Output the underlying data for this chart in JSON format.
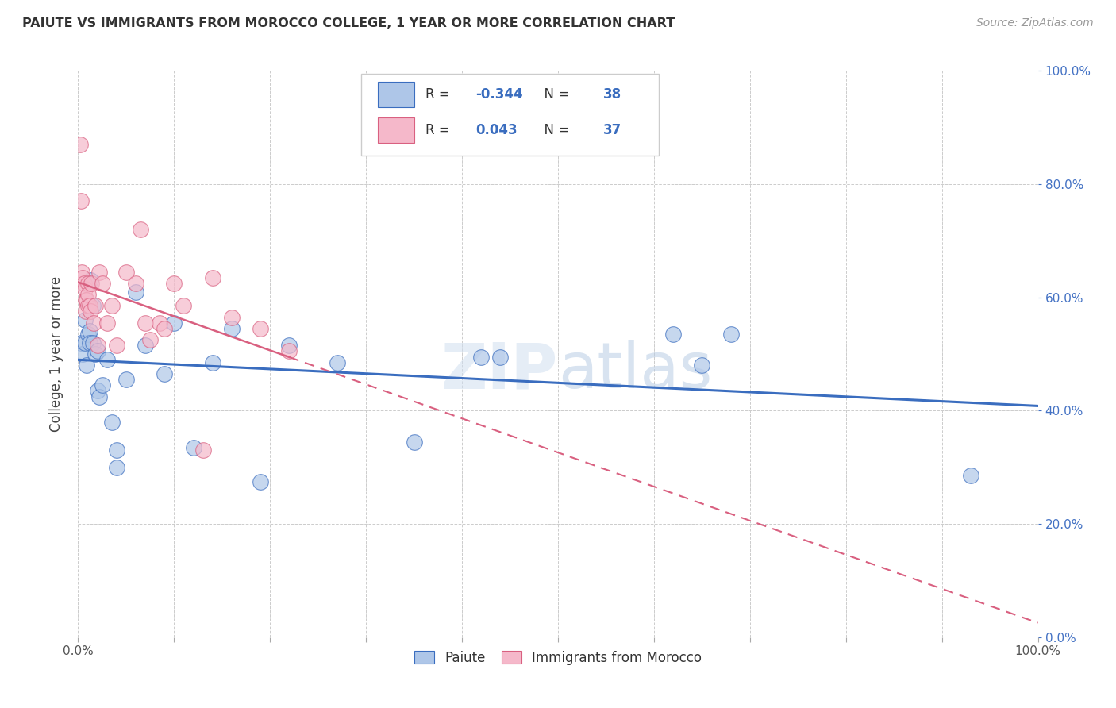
{
  "title": "PAIUTE VS IMMIGRANTS FROM MOROCCO COLLEGE, 1 YEAR OR MORE CORRELATION CHART",
  "source": "Source: ZipAtlas.com",
  "ylabel": "College, 1 year or more",
  "legend_label1": "Paiute",
  "legend_label2": "Immigrants from Morocco",
  "r1": -0.344,
  "n1": 38,
  "r2": 0.043,
  "n2": 37,
  "color_blue": "#aec6e8",
  "color_pink": "#f5b8ca",
  "line_blue": "#3a6dbf",
  "line_pink": "#d96080",
  "xlim": [
    0.0,
    1.0
  ],
  "ylim": [
    0.0,
    1.0
  ],
  "xtick_positions": [
    0.0,
    0.1,
    0.2,
    0.3,
    0.4,
    0.5,
    0.6,
    0.7,
    0.8,
    0.9,
    1.0
  ],
  "ytick_positions": [
    0.0,
    0.2,
    0.4,
    0.6,
    0.8,
    1.0
  ],
  "xtick_labels": [
    "0.0%",
    "",
    "",
    "",
    "",
    "",
    "",
    "",
    "",
    "",
    "100.0%"
  ],
  "ytick_labels_right": [
    "0.0%",
    "20.0%",
    "40.0%",
    "60.0%",
    "80.0%",
    "100.0%"
  ],
  "blue_x": [
    0.003,
    0.005,
    0.007,
    0.007,
    0.009,
    0.01,
    0.012,
    0.012,
    0.013,
    0.015,
    0.015,
    0.018,
    0.02,
    0.02,
    0.022,
    0.025,
    0.03,
    0.035,
    0.04,
    0.04,
    0.05,
    0.06,
    0.07,
    0.09,
    0.1,
    0.12,
    0.14,
    0.16,
    0.19,
    0.22,
    0.27,
    0.35,
    0.42,
    0.44,
    0.62,
    0.65,
    0.68,
    0.93
  ],
  "blue_y": [
    0.52,
    0.5,
    0.56,
    0.52,
    0.48,
    0.535,
    0.54,
    0.52,
    0.63,
    0.585,
    0.52,
    0.5,
    0.435,
    0.505,
    0.425,
    0.445,
    0.49,
    0.38,
    0.33,
    0.3,
    0.455,
    0.61,
    0.515,
    0.465,
    0.555,
    0.335,
    0.485,
    0.545,
    0.275,
    0.515,
    0.485,
    0.345,
    0.495,
    0.495,
    0.535,
    0.48,
    0.535,
    0.285
  ],
  "pink_x": [
    0.002,
    0.003,
    0.004,
    0.005,
    0.006,
    0.007,
    0.008,
    0.008,
    0.009,
    0.01,
    0.01,
    0.01,
    0.012,
    0.013,
    0.014,
    0.016,
    0.018,
    0.02,
    0.022,
    0.025,
    0.03,
    0.035,
    0.04,
    0.05,
    0.06,
    0.065,
    0.07,
    0.075,
    0.085,
    0.09,
    0.1,
    0.11,
    0.13,
    0.14,
    0.16,
    0.19,
    0.22
  ],
  "pink_y": [
    0.87,
    0.77,
    0.645,
    0.635,
    0.625,
    0.615,
    0.595,
    0.575,
    0.595,
    0.585,
    0.625,
    0.605,
    0.585,
    0.575,
    0.625,
    0.555,
    0.585,
    0.515,
    0.645,
    0.625,
    0.555,
    0.585,
    0.515,
    0.645,
    0.625,
    0.72,
    0.555,
    0.525,
    0.555,
    0.545,
    0.625,
    0.585,
    0.33,
    0.635,
    0.565,
    0.545,
    0.505
  ]
}
